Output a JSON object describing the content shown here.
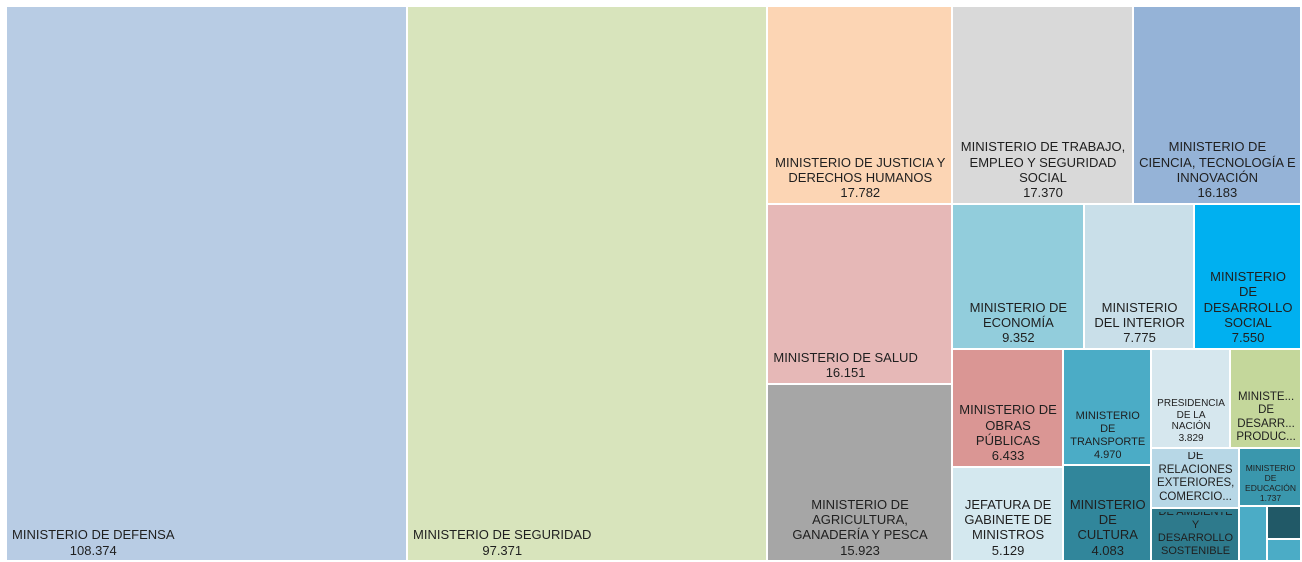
{
  "chart_data": {
    "type": "treemap",
    "categories": [
      "MINISTERIO DE DEFENSA",
      "MINISTERIO DE SEGURIDAD",
      "MINISTERIO DE JUSTICIA Y DERECHOS HUMANOS",
      "MINISTERIO DE TRABAJO, EMPLEO Y SEGURIDAD SOCIAL",
      "MINISTERIO DE CIENCIA, TECNOLOGÍA E INNOVACIÓN",
      "MINISTERIO DE SALUD",
      "MINISTERIO DE AGRICULTURA, GANADERÍA Y PESCA",
      "MINISTERIO DE ECONOMÍA",
      "MINISTERIO DEL INTERIOR",
      "MINISTERIO DE DESARROLLO SOCIAL",
      "MINISTERIO DE OBRAS PÚBLICAS",
      "JEFATURA DE GABINETE DE MINISTROS",
      "MINISTERIO DE TRANSPORTE",
      "MINISTERIO DE CULTURA",
      "PRESIDENCIA DE LA NACIÓN",
      "MINISTE... DE DESARR... PRODUC...",
      "MINISTERIO DE RELACIONES EXTERIORES, COMERCIO...",
      "MINISTERIO DE AMBIENTE Y DESARROLLO SOSTENIBLE",
      "MINISTERIO DE EDUCACIÓN",
      null,
      null,
      null
    ],
    "values": [
      108374,
      97371,
      17782,
      17370,
      16183,
      16151,
      15923,
      9352,
      7775,
      7550,
      6433,
      5129,
      4970,
      4083,
      3829,
      3430,
      2550,
      2290,
      1737,
      750,
      550,
      370
    ],
    "value_labels": [
      "108.374",
      "97.371",
      "17.782",
      "17.370",
      "16.183",
      "16.151",
      "15.923",
      "9.352",
      "7.775",
      "7.550",
      "6.433",
      "5.129",
      "4.970",
      "4.083",
      "3.829",
      null,
      null,
      null,
      "1.737",
      null,
      null,
      null
    ],
    "colors": [
      "#b8cce4",
      "#d8e4bc",
      "#fcd5b4",
      "#d9d9d9",
      "#95b3d7",
      "#e6b8b7",
      "#a6a6a6",
      "#92cddc",
      "#c9dfe9",
      "#00b0f0",
      "#da9694",
      "#d4e8ef",
      "#4bacc6",
      "#31869b",
      "#d6e7ee",
      "#c4d79b",
      "#b7d7e6",
      "#2e7a8c",
      "#3a97ad",
      "#4bacc6",
      "#215967",
      "#4bacc6"
    ]
  }
}
